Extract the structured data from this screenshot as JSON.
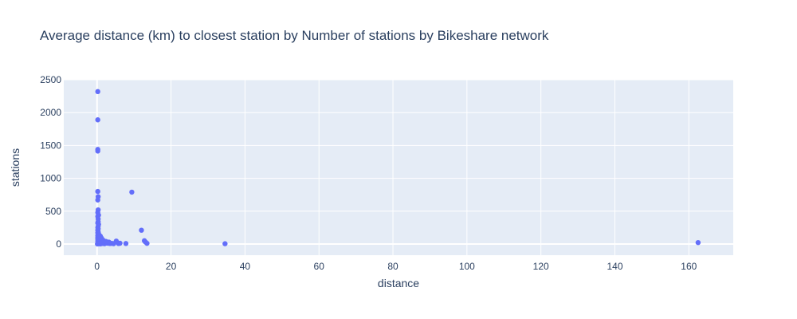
{
  "chart_data": {
    "type": "scatter",
    "title": "Average distance (km) to closest station by Number of stations by Bikeshare network",
    "xlabel": "distance",
    "ylabel": "stations",
    "xlim": [
      -9,
      172
    ],
    "ylim": [
      -170,
      2500
    ],
    "xticks": [
      0,
      20,
      40,
      60,
      80,
      100,
      120,
      140,
      160
    ],
    "yticks": [
      0,
      500,
      1000,
      1500,
      2000,
      2500
    ],
    "grid": true,
    "colors": {
      "plot_bg": "#e5ecf6",
      "grid": "#ffffff",
      "marker": "#636efa",
      "text": "#2a3f5f"
    },
    "points": [
      {
        "x": 0.2,
        "y": 2320
      },
      {
        "x": 0.2,
        "y": 1890
      },
      {
        "x": 0.2,
        "y": 1440
      },
      {
        "x": 0.2,
        "y": 1415
      },
      {
        "x": 0.2,
        "y": 800
      },
      {
        "x": 0.3,
        "y": 720
      },
      {
        "x": 0.2,
        "y": 670
      },
      {
        "x": 0.3,
        "y": 520
      },
      {
        "x": 0.2,
        "y": 480
      },
      {
        "x": 0.4,
        "y": 440
      },
      {
        "x": 0.2,
        "y": 420
      },
      {
        "x": 0.3,
        "y": 380
      },
      {
        "x": 0.3,
        "y": 340
      },
      {
        "x": 0.2,
        "y": 320
      },
      {
        "x": 0.4,
        "y": 300
      },
      {
        "x": 0.3,
        "y": 270
      },
      {
        "x": 0.2,
        "y": 250
      },
      {
        "x": 0.3,
        "y": 230
      },
      {
        "x": 0.2,
        "y": 210
      },
      {
        "x": 0.3,
        "y": 190
      },
      {
        "x": 0.2,
        "y": 170
      },
      {
        "x": 0.4,
        "y": 160
      },
      {
        "x": 0.3,
        "y": 145
      },
      {
        "x": 0.2,
        "y": 130
      },
      {
        "x": 0.3,
        "y": 120
      },
      {
        "x": 0.4,
        "y": 110
      },
      {
        "x": 0.2,
        "y": 100
      },
      {
        "x": 0.5,
        "y": 95
      },
      {
        "x": 0.3,
        "y": 85
      },
      {
        "x": 0.6,
        "y": 80
      },
      {
        "x": 0.2,
        "y": 75
      },
      {
        "x": 0.4,
        "y": 70
      },
      {
        "x": 0.8,
        "y": 65
      },
      {
        "x": 0.3,
        "y": 60
      },
      {
        "x": 1.0,
        "y": 55
      },
      {
        "x": 0.5,
        "y": 50
      },
      {
        "x": 0.2,
        "y": 45
      },
      {
        "x": 0.7,
        "y": 40
      },
      {
        "x": 1.2,
        "y": 38
      },
      {
        "x": 0.4,
        "y": 35
      },
      {
        "x": 0.9,
        "y": 32
      },
      {
        "x": 1.5,
        "y": 30
      },
      {
        "x": 0.3,
        "y": 28
      },
      {
        "x": 0.6,
        "y": 25
      },
      {
        "x": 1.8,
        "y": 22
      },
      {
        "x": 2.2,
        "y": 20
      },
      {
        "x": 0.5,
        "y": 18
      },
      {
        "x": 1.1,
        "y": 15
      },
      {
        "x": 2.6,
        "y": 14
      },
      {
        "x": 3.0,
        "y": 12
      },
      {
        "x": 0.8,
        "y": 10
      },
      {
        "x": 1.4,
        "y": 9
      },
      {
        "x": 3.5,
        "y": 8
      },
      {
        "x": 4.0,
        "y": 10
      },
      {
        "x": 4.5,
        "y": 6
      },
      {
        "x": 5.2,
        "y": 45
      },
      {
        "x": 5.8,
        "y": 8
      },
      {
        "x": 6.2,
        "y": 12
      },
      {
        "x": 0.4,
        "y": 5
      },
      {
        "x": 0.7,
        "y": 4
      },
      {
        "x": 1.0,
        "y": 3
      },
      {
        "x": 2.0,
        "y": 5
      },
      {
        "x": 0.1,
        "y": 2
      },
      {
        "x": 3.2,
        "y": 30
      },
      {
        "x": 2.4,
        "y": 40
      },
      {
        "x": 1.6,
        "y": 60
      },
      {
        "x": 1.2,
        "y": 90
      },
      {
        "x": 0.9,
        "y": 120
      },
      {
        "x": 7.8,
        "y": 8
      },
      {
        "x": 9.4,
        "y": 790
      },
      {
        "x": 12.0,
        "y": 210
      },
      {
        "x": 12.8,
        "y": 50
      },
      {
        "x": 13.1,
        "y": 30
      },
      {
        "x": 13.5,
        "y": 10
      },
      {
        "x": 34.6,
        "y": 5
      },
      {
        "x": 162.5,
        "y": 22
      }
    ]
  }
}
